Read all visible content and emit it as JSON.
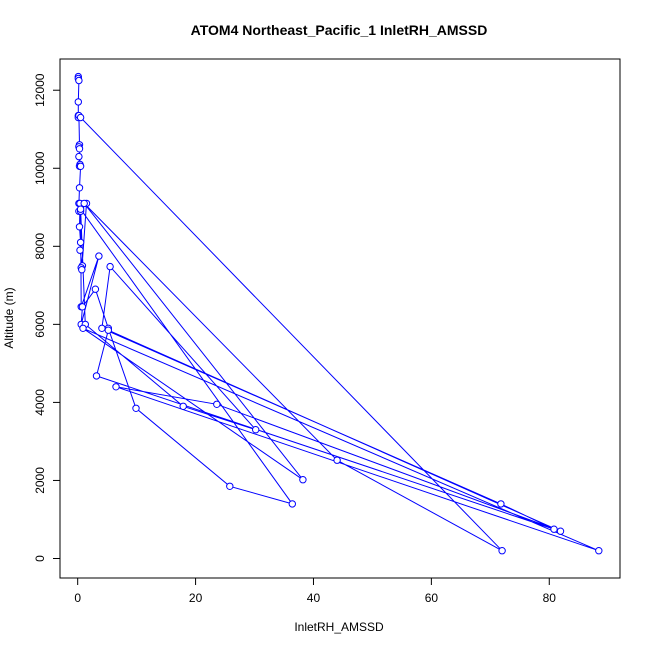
{
  "chart_data": {
    "type": "line",
    "title": "ATOM4 Northeast_Pacific_1 InletRH_AMSSD",
    "xlabel": "InletRH_AMSSD",
    "ylabel": "Altitude (m)",
    "xlim": [
      -3,
      92
    ],
    "ylim": [
      -500,
      12800
    ],
    "xticks": [
      0,
      20,
      40,
      60,
      80
    ],
    "yticks": [
      0,
      2000,
      4000,
      6000,
      8000,
      10000,
      12000
    ],
    "color": "#0000ff",
    "series": [
      {
        "x": [
          0.1,
          0.1,
          0.2,
          0.1,
          0.1,
          0.1,
          0.2,
          0.3,
          0.2,
          0.3,
          0.4,
          0.3,
          0.2,
          0.5,
          0.3,
          0.2,
          0.2,
          0.4,
          0.3,
          0.5,
          0.4,
          0.8,
          0.6,
          0.7,
          1.5,
          0.5,
          0.6,
          3.6,
          0.6,
          0.8,
          3.0,
          5.2,
          9.9,
          25.8,
          36.4,
          0.5,
          1.3,
          17.9,
          30.2,
          5.5,
          4.1,
          71.8,
          80.8,
          3.2,
          5.2,
          81.9,
          23.6,
          6.5,
          88.4,
          0.9,
          38.2,
          1.1,
          44.0,
          72.0,
          0.5
        ],
        "y": [
          12350,
          12300,
          12250,
          11700,
          11350,
          11300,
          11350,
          10600,
          10550,
          10500,
          10100,
          10050,
          10300,
          10050,
          9500,
          9100,
          8900,
          9100,
          8500,
          8100,
          7900,
          7500,
          7450,
          7400,
          9100,
          8900,
          6450,
          7750,
          6000,
          6450,
          6900,
          5900,
          3850,
          1850,
          1400,
          8950,
          6000,
          3900,
          3300,
          7480,
          5900,
          1400,
          750,
          4680,
          5850,
          700,
          3950,
          4400,
          200,
          5900,
          2020,
          9100,
          2520,
          200,
          11300
        ]
      }
    ]
  }
}
